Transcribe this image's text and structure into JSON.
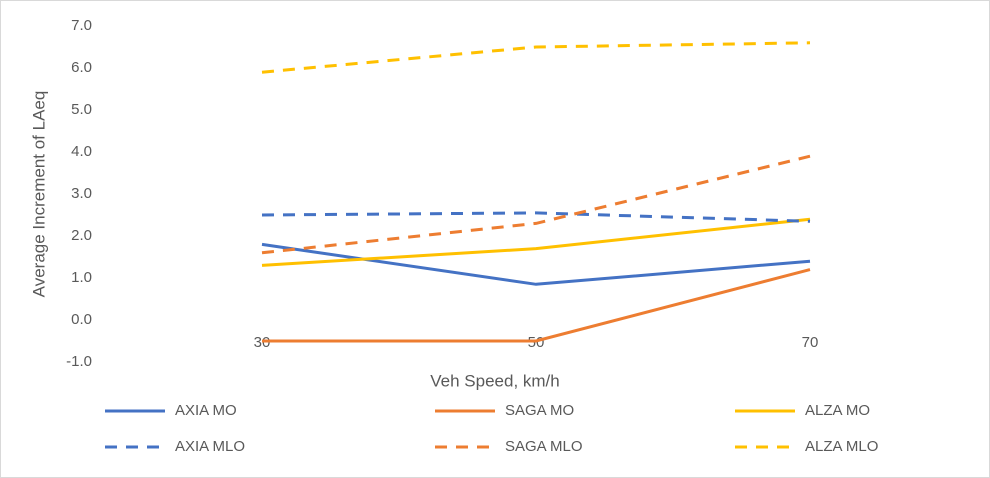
{
  "chart_data": {
    "type": "line",
    "xlabel": "Veh Speed, km/h",
    "ylabel": "Average Increment of LAeq",
    "categories": [
      "30",
      "50",
      "70"
    ],
    "ylim": [
      -1,
      7
    ],
    "yticks": [
      {
        "value": -1,
        "label": "-1.0"
      },
      {
        "value": 0,
        "label": "0.0"
      },
      {
        "value": 1,
        "label": "1.0"
      },
      {
        "value": 2,
        "label": "2.0"
      },
      {
        "value": 3,
        "label": "3.0"
      },
      {
        "value": 4,
        "label": "4.0"
      },
      {
        "value": 5,
        "label": "5.0"
      },
      {
        "value": 6,
        "label": "6.0"
      },
      {
        "value": 7,
        "label": "7.0"
      }
    ],
    "grid": false,
    "legend": "bottom",
    "series": [
      {
        "name": "AXIA MO",
        "color": "#4472c4",
        "dashed": false,
        "values": [
          1.8,
          0.85,
          1.4
        ]
      },
      {
        "name": "SAGA MO",
        "color": "#ed7d31",
        "dashed": false,
        "values": [
          -0.5,
          -0.5,
          1.2
        ]
      },
      {
        "name": "ALZA MO",
        "color": "#ffc000",
        "dashed": false,
        "values": [
          1.3,
          1.7,
          2.4
        ]
      },
      {
        "name": "AXIA MLO",
        "color": "#4472c4",
        "dashed": true,
        "values": [
          2.5,
          2.55,
          2.35
        ]
      },
      {
        "name": "SAGA MLO",
        "color": "#ed7d31",
        "dashed": true,
        "values": [
          1.6,
          2.3,
          3.9
        ]
      },
      {
        "name": "ALZA MLO",
        "color": "#ffc000",
        "dashed": true,
        "values": [
          5.9,
          6.5,
          6.6
        ]
      }
    ]
  }
}
